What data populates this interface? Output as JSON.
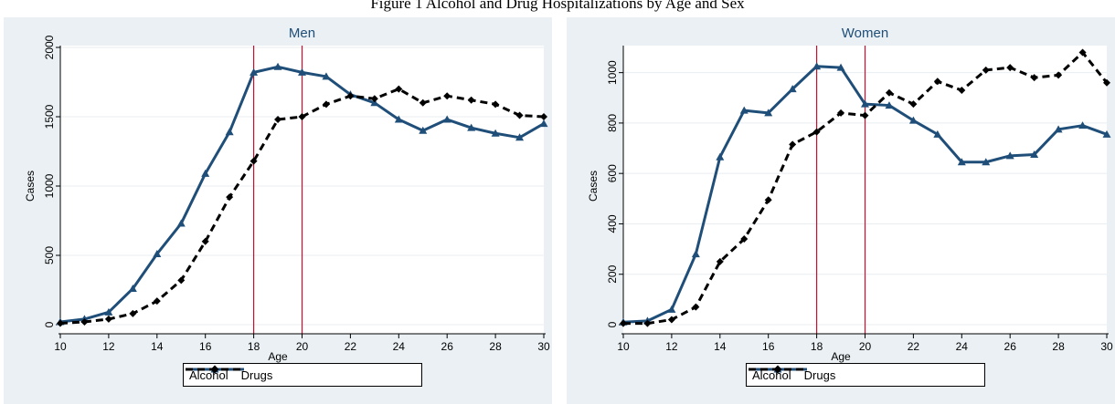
{
  "figure": {
    "title": "Figure 1 Alcohol and Drug Hospitalizations by Age and Sex"
  },
  "colors": {
    "alcohol": "#1f4e79",
    "drugs": "#000000",
    "ref_line": "#c8102e",
    "panel_bg": "#eaf0f3",
    "plot_bg": "#ffffff",
    "title_text": "#1f4e79"
  },
  "chart_data": [
    {
      "type": "line",
      "title": "Men",
      "xlabel": "Age",
      "ylabel": "Cases",
      "xlim": [
        10,
        30
      ],
      "ylim": [
        0,
        2000
      ],
      "xticks": [
        10,
        12,
        14,
        16,
        18,
        20,
        22,
        24,
        26,
        28,
        30
      ],
      "yticks": [
        0,
        500,
        1000,
        1500,
        2000
      ],
      "reference_lines_x": [
        18,
        20
      ],
      "legend": {
        "placement": "bottom-center",
        "entries": [
          "Alcohol",
          "Drugs"
        ]
      },
      "grid": true,
      "x": [
        10,
        11,
        12,
        13,
        14,
        15,
        16,
        17,
        18,
        19,
        20,
        21,
        22,
        23,
        24,
        25,
        26,
        27,
        28,
        29,
        30
      ],
      "series": [
        {
          "name": "Alcohol",
          "values": [
            20,
            40,
            90,
            260,
            510,
            730,
            1090,
            1390,
            1820,
            1860,
            1820,
            1790,
            1660,
            1600,
            1480,
            1400,
            1480,
            1420,
            1380,
            1350,
            1450
          ]
        },
        {
          "name": "Drugs",
          "values": [
            10,
            20,
            40,
            80,
            170,
            320,
            600,
            920,
            1180,
            1480,
            1500,
            1590,
            1650,
            1630,
            1700,
            1600,
            1650,
            1620,
            1590,
            1510,
            1500
          ]
        }
      ]
    },
    {
      "type": "line",
      "title": "Women",
      "xlabel": "Age",
      "ylabel": "Cases",
      "xlim": [
        10,
        30
      ],
      "ylim": [
        0,
        1100
      ],
      "xticks": [
        10,
        12,
        14,
        16,
        18,
        20,
        22,
        24,
        26,
        28,
        30
      ],
      "yticks": [
        0,
        200,
        400,
        600,
        800,
        1000
      ],
      "reference_lines_x": [
        18,
        20
      ],
      "legend": {
        "placement": "bottom-center",
        "entries": [
          "Alcohol",
          "Drugs"
        ]
      },
      "grid": true,
      "x": [
        10,
        11,
        12,
        13,
        14,
        15,
        16,
        17,
        18,
        19,
        20,
        21,
        22,
        23,
        24,
        25,
        26,
        27,
        28,
        29,
        30
      ],
      "series": [
        {
          "name": "Alcohol",
          "values": [
            10,
            15,
            60,
            280,
            665,
            850,
            840,
            935,
            1025,
            1020,
            875,
            870,
            810,
            755,
            645,
            645,
            670,
            675,
            775,
            790,
            755
          ]
        },
        {
          "name": "Drugs",
          "values": [
            5,
            5,
            20,
            70,
            250,
            340,
            495,
            715,
            765,
            840,
            830,
            920,
            875,
            965,
            930,
            1010,
            1020,
            980,
            990,
            1080,
            960
          ]
        }
      ]
    }
  ]
}
